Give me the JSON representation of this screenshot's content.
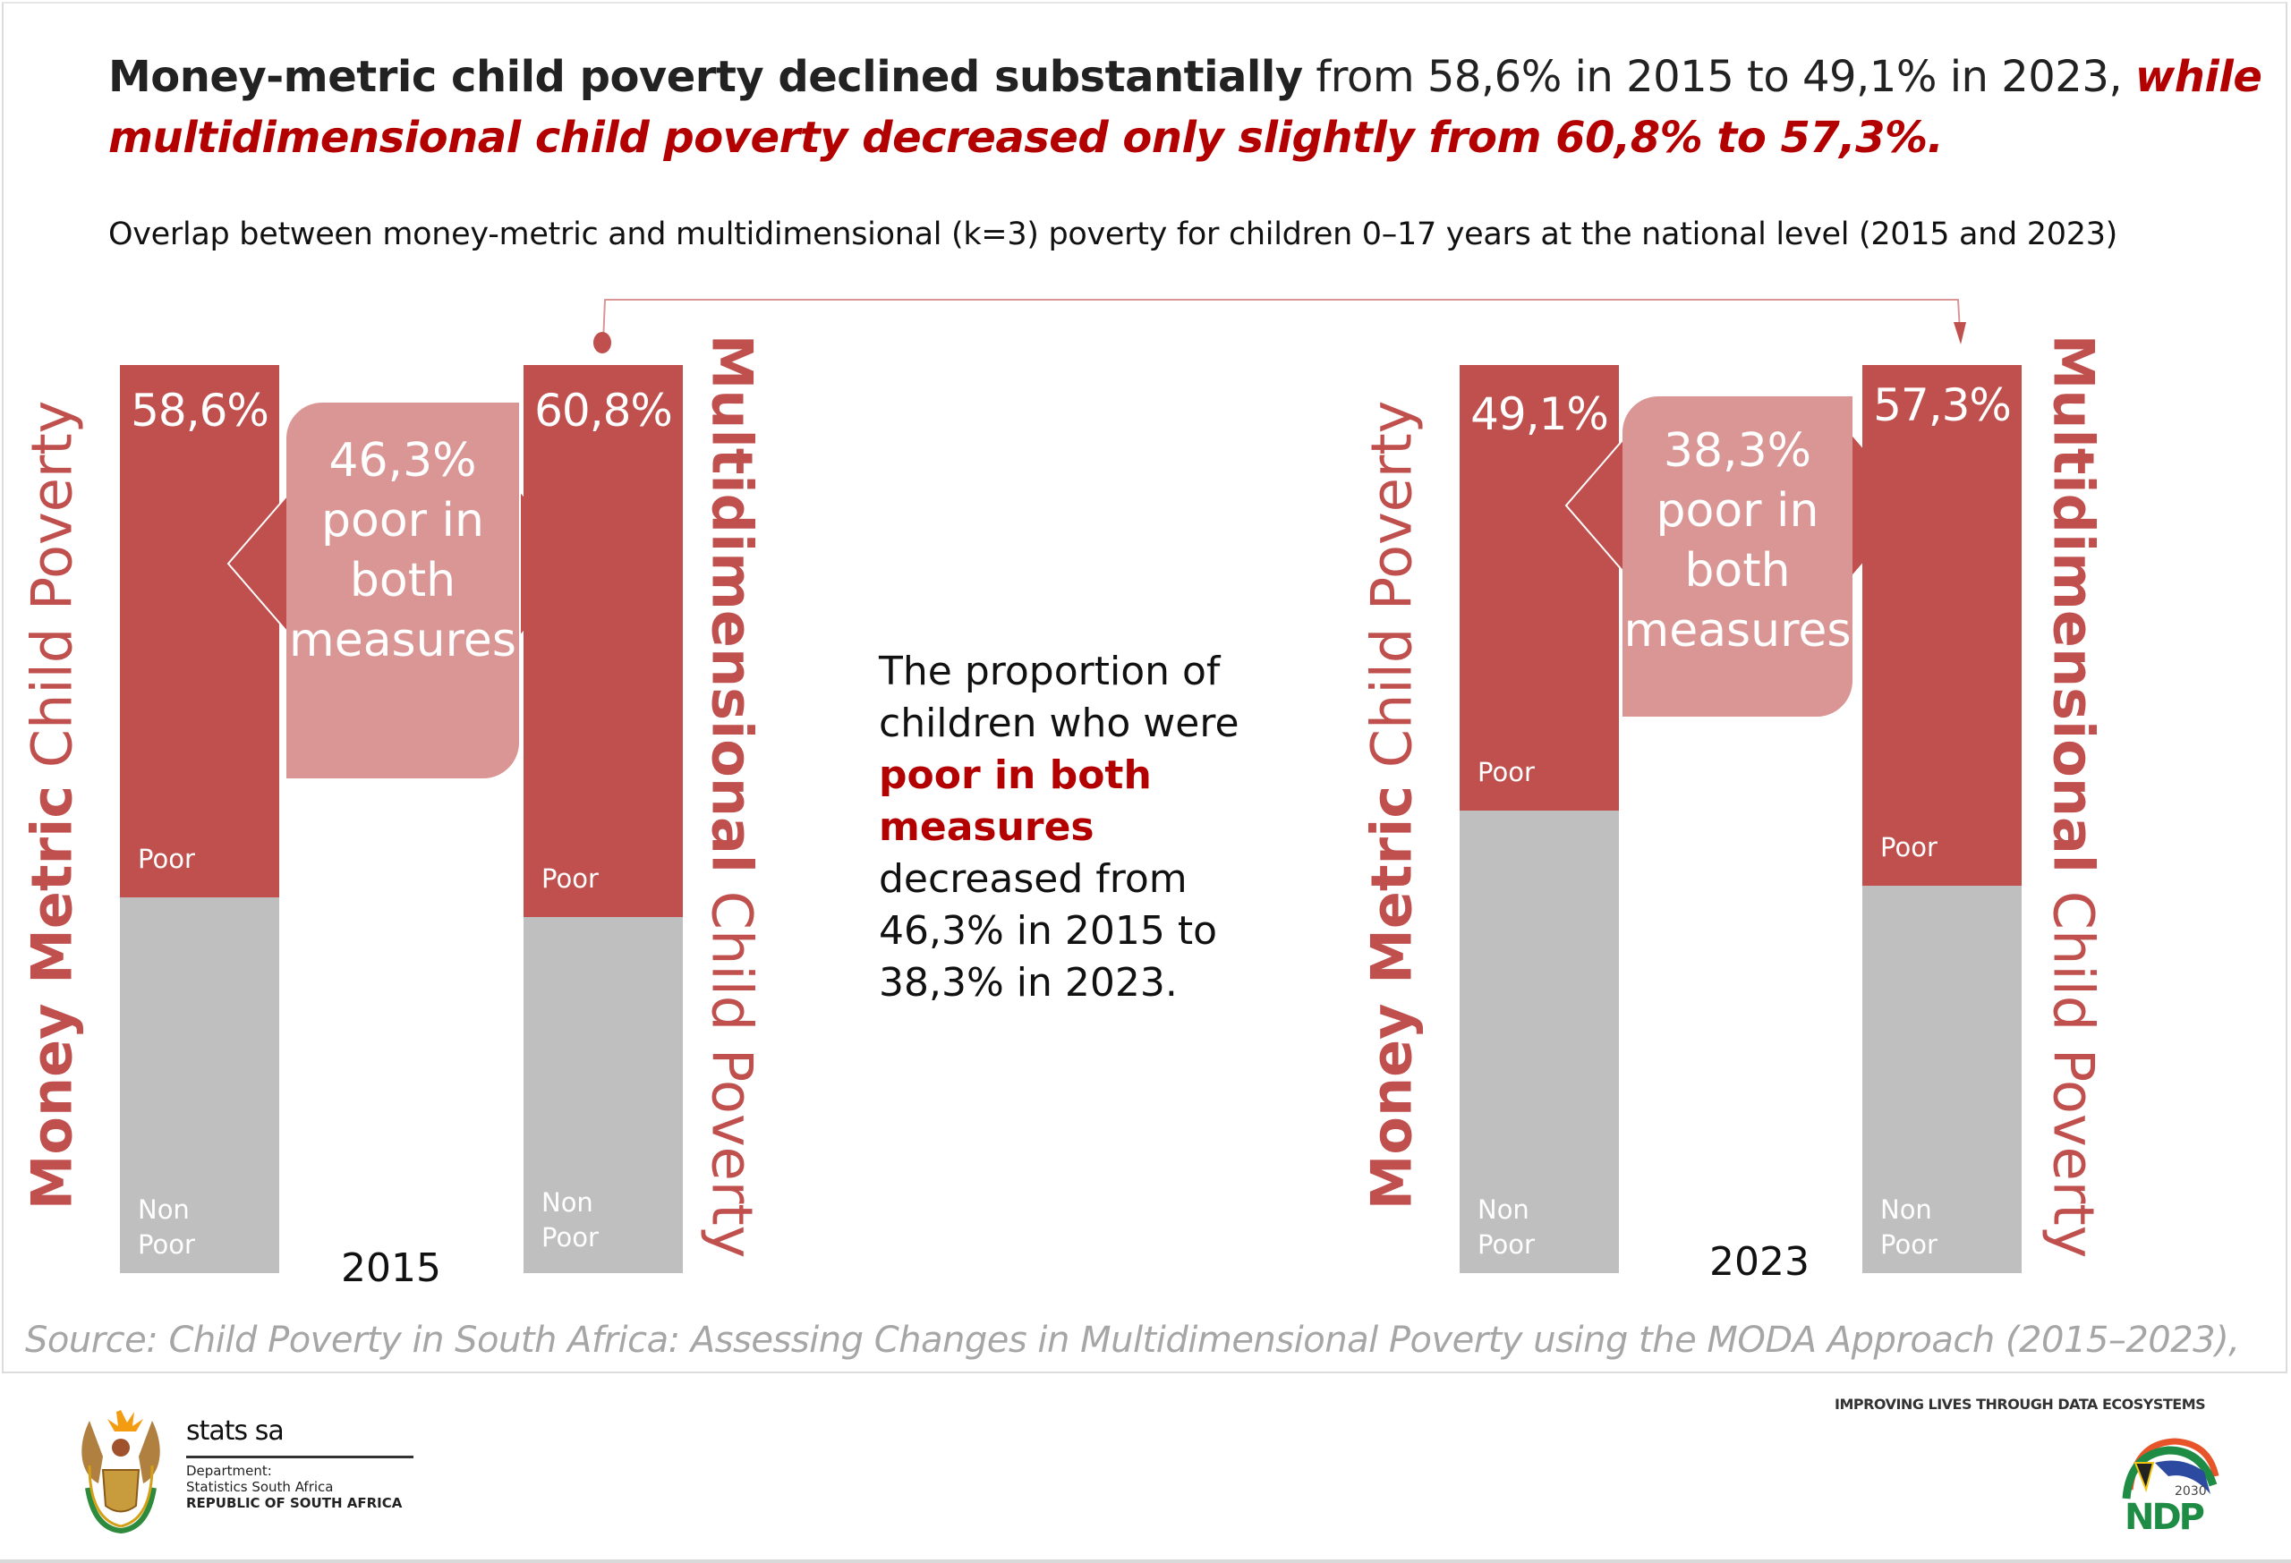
{
  "headline": {
    "bold": "Money-metric child poverty declined substantially",
    "normal": " from 58,6% in 2015 to 49,1% in 2023, ",
    "red": "while multidimensional child poverty decreased only slightly from 60,8% to 57,3%."
  },
  "subtitle": "Overlap between money-metric and multidimensional (k=3) poverty for children 0–17 years at the national level (2015 and 2023)",
  "colors": {
    "poor": "#c0504d",
    "non_poor": "#bfbfbf",
    "overlap": "#d99694",
    "accent_text": "#b30000"
  },
  "labels": {
    "money_metric_bold": "Money Metric",
    "money_metric_rest": " Child Poverty",
    "multidim_bold": "Multidimensional",
    "multidim_rest": " Child Poverty",
    "poor": "Poor",
    "non": "Non",
    "non_poor": "Poor"
  },
  "note": {
    "part1": "The proportion of children who were ",
    "red": "poor in both measures",
    "part2": " decreased from 46,3% in 2015 to 38,3% in 2023."
  },
  "source": "Source: Child Poverty in South Africa: Assessing Changes in Multidimensional Poverty using the MODA Approach (2015–2023),",
  "footer": {
    "stats_name": "stats sa",
    "dept_line1": "Department:",
    "dept_line2": "Statistics South Africa",
    "dept_line3": "REPUBLIC OF SOUTH AFRICA",
    "tagline": "IMPROVING LIVES THROUGH DATA ECOSYSTEMS",
    "ndp_year": "2030",
    "ndp_text": "NDP"
  },
  "chart_data": {
    "type": "bar",
    "title": "Overlap between money-metric and multidimensional (k=3) poverty for children 0–17 years at the national level (2015 and 2023)",
    "categories": [
      "2015",
      "2023"
    ],
    "series": [
      {
        "name": "Money Metric Child Poverty",
        "values": [
          58.6,
          49.1
        ],
        "labels": [
          "58,6%",
          "49,1%"
        ]
      },
      {
        "name": "Multidimensional Child Poverty",
        "values": [
          60.8,
          57.3
        ],
        "labels": [
          "60,8%",
          "57,3%"
        ]
      },
      {
        "name": "Poor in both measures",
        "values": [
          46.3,
          38.3
        ],
        "labels": [
          "46,3%",
          "38,3%"
        ]
      }
    ],
    "stack_segments": [
      "Poor",
      "Non Poor"
    ],
    "overlap_label_lines": [
      "poor in",
      "both",
      "measures"
    ],
    "ylim": [
      0,
      100
    ],
    "unit": "%"
  }
}
